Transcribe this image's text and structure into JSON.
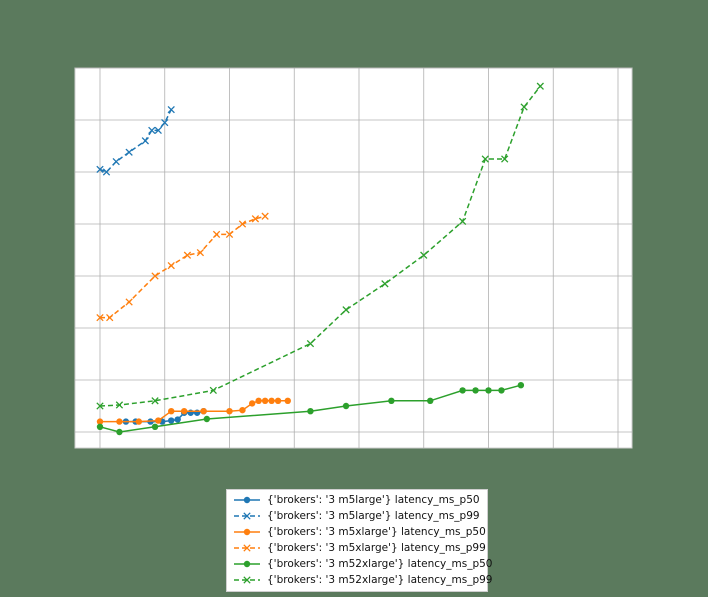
{
  "chart_data": {
    "type": "line",
    "title": "",
    "xlabel": "",
    "ylabel": "",
    "x_range": [
      0,
      8
    ],
    "y_range": [
      0,
      7
    ],
    "grid": true,
    "legend_placement": "below",
    "series": [
      {
        "name": "{'brokers': '3 m5large'} latency_ms_p50",
        "color": "#1f77b4",
        "linestyle": "solid",
        "marker": "o",
        "points": [
          [
            0.4,
            0.2
          ],
          [
            0.55,
            0.2
          ],
          [
            0.78,
            0.2
          ],
          [
            0.96,
            0.2
          ],
          [
            1.1,
            0.22
          ],
          [
            1.2,
            0.24
          ],
          [
            1.3,
            0.37
          ],
          [
            1.4,
            0.37
          ],
          [
            1.5,
            0.37
          ],
          [
            1.6,
            0.4
          ]
        ]
      },
      {
        "name": "{'brokers': '3 m5large'} latency_ms_p99",
        "color": "#1f77b4",
        "linestyle": "dashed",
        "marker": "x",
        "points": [
          [
            0.0,
            5.05
          ],
          [
            0.1,
            5.0
          ],
          [
            0.25,
            5.2
          ],
          [
            0.45,
            5.38
          ],
          [
            0.7,
            5.6
          ],
          [
            0.8,
            5.8
          ],
          [
            0.9,
            5.8
          ],
          [
            1.0,
            5.95
          ],
          [
            1.1,
            6.2
          ]
        ]
      },
      {
        "name": "{'brokers': '3 m5xlarge'} latency_ms_p50",
        "color": "#ff7f0e",
        "linestyle": "solid",
        "marker": "o",
        "points": [
          [
            0.0,
            0.2
          ],
          [
            0.3,
            0.2
          ],
          [
            0.6,
            0.2
          ],
          [
            0.9,
            0.22
          ],
          [
            1.1,
            0.4
          ],
          [
            1.3,
            0.4
          ],
          [
            1.6,
            0.4
          ],
          [
            2.0,
            0.4
          ],
          [
            2.2,
            0.42
          ],
          [
            2.35,
            0.55
          ],
          [
            2.45,
            0.6
          ],
          [
            2.55,
            0.6
          ],
          [
            2.65,
            0.6
          ],
          [
            2.75,
            0.6
          ],
          [
            2.9,
            0.6
          ]
        ]
      },
      {
        "name": "{'brokers': '3 m5xlarge'} latency_ms_p99",
        "color": "#ff7f0e",
        "linestyle": "dashed",
        "marker": "x",
        "points": [
          [
            0.0,
            2.2
          ],
          [
            0.15,
            2.2
          ],
          [
            0.45,
            2.5
          ],
          [
            0.85,
            3.0
          ],
          [
            1.1,
            3.2
          ],
          [
            1.35,
            3.4
          ],
          [
            1.55,
            3.45
          ],
          [
            1.8,
            3.8
          ],
          [
            2.0,
            3.8
          ],
          [
            2.2,
            4.0
          ],
          [
            2.4,
            4.1
          ],
          [
            2.55,
            4.15
          ]
        ]
      },
      {
        "name": "{'brokers': '3 m52xlarge'} latency_ms_p50",
        "color": "#2ca02c",
        "linestyle": "solid",
        "marker": "o",
        "points": [
          [
            0.0,
            0.1
          ],
          [
            0.3,
            0.0
          ],
          [
            0.85,
            0.1
          ],
          [
            1.65,
            0.25
          ],
          [
            3.25,
            0.4
          ],
          [
            3.8,
            0.5
          ],
          [
            4.5,
            0.6
          ],
          [
            5.1,
            0.6
          ],
          [
            5.6,
            0.8
          ],
          [
            5.8,
            0.8
          ],
          [
            6.0,
            0.8
          ],
          [
            6.2,
            0.8
          ],
          [
            6.5,
            0.9
          ]
        ]
      },
      {
        "name": "{'brokers': '3 m52xlarge'} latency_ms_p99",
        "color": "#2ca02c",
        "linestyle": "dashed",
        "marker": "x",
        "points": [
          [
            0.0,
            0.5
          ],
          [
            0.3,
            0.52
          ],
          [
            0.85,
            0.6
          ],
          [
            1.75,
            0.8
          ],
          [
            3.25,
            1.7
          ],
          [
            3.8,
            2.35
          ],
          [
            4.4,
            2.85
          ],
          [
            5.0,
            3.4
          ],
          [
            5.6,
            4.05
          ],
          [
            5.95,
            5.25
          ],
          [
            6.25,
            5.25
          ],
          [
            6.55,
            6.25
          ],
          [
            6.8,
            6.65
          ]
        ]
      }
    ]
  }
}
